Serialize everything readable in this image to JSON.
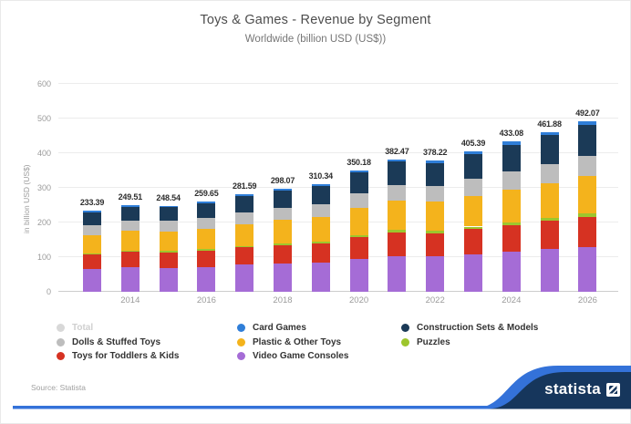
{
  "header": {
    "title": "Toys & Games - Revenue by Segment",
    "subtitle": "Worldwide (billion USD (US$))"
  },
  "chart_data": {
    "type": "bar",
    "stacked": true,
    "title": "Toys & Games - Revenue by Segment",
    "subtitle": "Worldwide (billion USD (US$))",
    "ylabel": "in billion USD (US$)",
    "ylim": [
      0,
      600
    ],
    "yticks": [
      0,
      100,
      200,
      300,
      400,
      500,
      600
    ],
    "grid": true,
    "legend_position": "bottom",
    "categories": [
      "2013",
      "2014",
      "2015",
      "2016",
      "2017",
      "2018",
      "2019",
      "2020",
      "2021",
      "2022",
      "2023",
      "2024",
      "2025",
      "2026"
    ],
    "x_tick_labels": [
      "2014",
      "2016",
      "2018",
      "2020",
      "2022",
      "2024",
      "2026"
    ],
    "totals": [
      233.39,
      249.51,
      248.54,
      259.65,
      281.59,
      298.07,
      310.34,
      350.18,
      382.47,
      378.22,
      405.39,
      433.08,
      461.88,
      492.07
    ],
    "series": [
      {
        "name": "Video Game Consoles",
        "color": "#a56cd6",
        "values": [
          66.0,
          70.2,
          69.6,
          72.3,
          78.0,
          82.2,
          85.1,
          95.5,
          103.8,
          102.0,
          108.8,
          115.6,
          122.6,
          129.9
        ]
      },
      {
        "name": "Toys for Toddlers & Kids",
        "color": "#d63222",
        "values": [
          42.0,
          44.9,
          44.6,
          46.6,
          50.4,
          53.3,
          55.4,
          62.5,
          68.2,
          67.3,
          72.0,
          76.9,
          81.8,
          87.1
        ]
      },
      {
        "name": "Puzzles",
        "color": "#9dc62d",
        "values": [
          3.0,
          3.4,
          3.5,
          3.8,
          4.3,
          4.7,
          5.0,
          5.9,
          6.6,
          6.7,
          7.4,
          8.2,
          9.0,
          9.8
        ]
      },
      {
        "name": "Plastic & Other Toys",
        "color": "#f4b31c",
        "values": [
          53.2,
          56.7,
          56.2,
          58.6,
          63.2,
          66.7,
          69.2,
          77.8,
          84.6,
          83.4,
          89.0,
          94.7,
          100.6,
          106.8
        ]
      },
      {
        "name": "Dolls & Stuffed Toys",
        "color": "#bdbdbd",
        "values": [
          28.9,
          30.8,
          30.6,
          31.8,
          34.4,
          36.3,
          37.6,
          42.3,
          46.0,
          45.3,
          48.4,
          51.5,
          54.7,
          58.1
        ]
      },
      {
        "name": "Construction Sets & Models",
        "color": "#1b3a57",
        "values": [
          36.4,
          39.4,
          39.8,
          42.1,
          46.3,
          49.6,
          52.3,
          59.7,
          66.0,
          66.1,
          71.7,
          77.4,
          83.6,
          90.1
        ]
      },
      {
        "name": "Card Games",
        "color": "#2f7ed8",
        "values": [
          3.7,
          4.1,
          4.2,
          4.5,
          4.9,
          5.3,
          5.7,
          6.5,
          7.3,
          7.4,
          8.0,
          8.7,
          9.5,
          10.3
        ]
      }
    ]
  },
  "legend": {
    "items": [
      {
        "label": "Total",
        "color": "#d8d8d8",
        "disabled": true
      },
      {
        "label": "Dolls & Stuffed Toys",
        "color": "#bdbdbd",
        "disabled": false
      },
      {
        "label": "Toys for Toddlers & Kids",
        "color": "#d63222",
        "disabled": false
      },
      {
        "label": "Card Games",
        "color": "#2f7ed8",
        "disabled": false
      },
      {
        "label": "Plastic & Other Toys",
        "color": "#f4b31c",
        "disabled": false
      },
      {
        "label": "Video Game Consoles",
        "color": "#a56cd6",
        "disabled": false
      },
      {
        "label": "Construction Sets & Models",
        "color": "#1b3a57",
        "disabled": false
      },
      {
        "label": "Puzzles",
        "color": "#9dc62d",
        "disabled": false
      }
    ]
  },
  "footer": {
    "source": "Source: Statista",
    "brand": "statista",
    "accent_blue": "#3472d9",
    "brand_navy": "#16365c"
  }
}
